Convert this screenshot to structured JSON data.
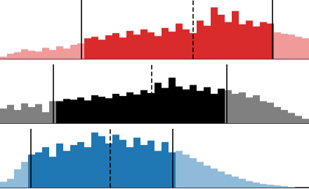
{
  "chart_data": [
    {
      "type": "histogram",
      "tick_labels": false,
      "xlim": [
        0,
        440
      ],
      "ylim": [
        0,
        80
      ],
      "bins": [
        0,
        10,
        20,
        30,
        40,
        50,
        60,
        70,
        80,
        90,
        100,
        110,
        120,
        130,
        140,
        150,
        160,
        170,
        180,
        190,
        200,
        210,
        220,
        230,
        240,
        250,
        260,
        270,
        280,
        290,
        300,
        310,
        320,
        330,
        340,
        350,
        360,
        370,
        380,
        390,
        400,
        410,
        420,
        430,
        440
      ],
      "counts": [
        3,
        7,
        9,
        13,
        11,
        10,
        15,
        12,
        17,
        14,
        19,
        21,
        28,
        30,
        26,
        32,
        35,
        29,
        38,
        33,
        40,
        36,
        31,
        42,
        37,
        48,
        40,
        35,
        52,
        45,
        70,
        60,
        50,
        65,
        47,
        52,
        44,
        50,
        48,
        36,
        34,
        33,
        30,
        28
      ],
      "colors": [
        "#f09a9a",
        "#f09a9a",
        "#f09a9a",
        "#f09a9a",
        "#f09a9a",
        "#f09a9a",
        "#f09a9a",
        "#f09a9a",
        "#f09a9a",
        "#f09a9a",
        "#f09a9a",
        "#f09a9a",
        "#d92b2b",
        "#d92b2b",
        "#d92b2b",
        "#d92b2b",
        "#d92b2b",
        "#d92b2b",
        "#d92b2b",
        "#d92b2b",
        "#d92b2b",
        "#d92b2b",
        "#d92b2b",
        "#d92b2b",
        "#d92b2b",
        "#d92b2b",
        "#d92b2b",
        "#d92b2b",
        "#d92b2b",
        "#d92b2b",
        "#d92b2b",
        "#d92b2b",
        "#d92b2b",
        "#d92b2b",
        "#d92b2b",
        "#d92b2b",
        "#d92b2b",
        "#d92b2b",
        "#d92b2b",
        "#f09a9a",
        "#f09a9a",
        "#f09a9a",
        "#f09a9a",
        "#f09a9a"
      ],
      "interval": [
        116,
        388
      ],
      "median": 275
    },
    {
      "type": "histogram",
      "tick_labels": false,
      "xlim": [
        0,
        440
      ],
      "ylim": [
        0,
        80
      ],
      "bins": [
        0,
        10,
        20,
        30,
        40,
        50,
        60,
        70,
        80,
        90,
        100,
        110,
        120,
        130,
        140,
        150,
        160,
        170,
        180,
        190,
        200,
        210,
        220,
        230,
        240,
        250,
        260,
        270,
        280,
        290,
        300,
        310,
        320,
        330,
        340,
        350,
        360,
        370,
        380,
        390,
        400,
        410,
        420,
        430,
        440
      ],
      "counts": [
        20,
        25,
        18,
        27,
        22,
        26,
        15,
        30,
        30,
        33,
        32,
        35,
        31,
        38,
        36,
        34,
        40,
        37,
        42,
        39,
        45,
        41,
        55,
        48,
        62,
        50,
        46,
        52,
        44,
        49,
        40,
        47,
        45,
        40,
        42,
        35,
        38,
        30,
        28,
        22,
        18,
        14,
        10,
        6
      ],
      "colors": [
        "#808080",
        "#808080",
        "#808080",
        "#808080",
        "#808080",
        "#808080",
        "#808080",
        "#808080",
        "#000000",
        "#000000",
        "#000000",
        "#000000",
        "#000000",
        "#000000",
        "#000000",
        "#000000",
        "#000000",
        "#000000",
        "#000000",
        "#000000",
        "#000000",
        "#000000",
        "#000000",
        "#000000",
        "#000000",
        "#000000",
        "#000000",
        "#000000",
        "#000000",
        "#000000",
        "#000000",
        "#000000",
        "#808080",
        "#808080",
        "#808080",
        "#808080",
        "#808080",
        "#808080",
        "#808080",
        "#808080",
        "#808080",
        "#808080",
        "#808080",
        "#808080"
      ],
      "interval": [
        76,
        323
      ],
      "median": 216
    },
    {
      "type": "histogram",
      "tick_labels": false,
      "xlim": [
        0,
        440
      ],
      "ylim": [
        0,
        80
      ],
      "bins": [
        0,
        10,
        20,
        30,
        40,
        50,
        60,
        70,
        80,
        90,
        100,
        110,
        120,
        130,
        140,
        150,
        160,
        170,
        180,
        190,
        200,
        210,
        220,
        230,
        240,
        250,
        260,
        270,
        280,
        290,
        300,
        310,
        320,
        330,
        340,
        350,
        360,
        370,
        380,
        390,
        400,
        410,
        420,
        430,
        440
      ],
      "counts": [
        8,
        12,
        25,
        35,
        45,
        48,
        55,
        42,
        60,
        50,
        58,
        62,
        55,
        75,
        70,
        60,
        72,
        65,
        55,
        68,
        58,
        64,
        50,
        62,
        48,
        50,
        45,
        40,
        35,
        30,
        26,
        22,
        18,
        15,
        12,
        9,
        7,
        5,
        4,
        3,
        2,
        1,
        0,
        0
      ],
      "colors": [
        "#8fbbd9",
        "#8fbbd9",
        "#8fbbd9",
        "#8fbbd9",
        "#1f77b4",
        "#1f77b4",
        "#1f77b4",
        "#1f77b4",
        "#1f77b4",
        "#1f77b4",
        "#1f77b4",
        "#1f77b4",
        "#1f77b4",
        "#1f77b4",
        "#1f77b4",
        "#1f77b4",
        "#1f77b4",
        "#1f77b4",
        "#1f77b4",
        "#1f77b4",
        "#1f77b4",
        "#1f77b4",
        "#1f77b4",
        "#1f77b4",
        "#1f77b4",
        "#8fbbd9",
        "#8fbbd9",
        "#8fbbd9",
        "#8fbbd9",
        "#8fbbd9",
        "#8fbbd9",
        "#8fbbd9",
        "#8fbbd9",
        "#8fbbd9",
        "#8fbbd9",
        "#8fbbd9",
        "#8fbbd9",
        "#8fbbd9",
        "#8fbbd9",
        "#8fbbd9",
        "#8fbbd9",
        "#8fbbd9",
        "#8fbbd9",
        "#8fbbd9"
      ],
      "interval": [
        44,
        246
      ],
      "median": 157
    }
  ]
}
